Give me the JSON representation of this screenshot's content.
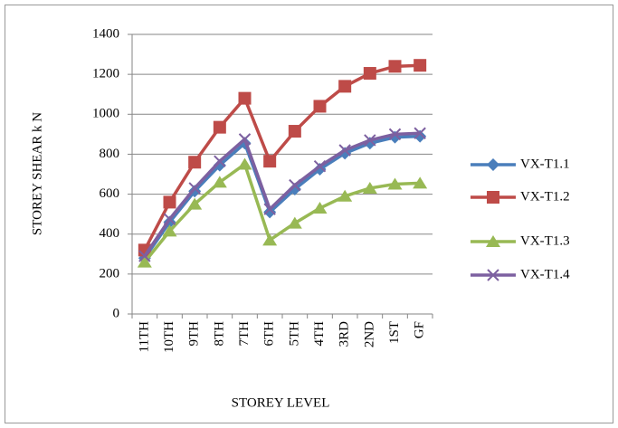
{
  "chart_data": {
    "type": "line",
    "xlabel": "STOREY LEVEL",
    "ylabel": "STOREY SHEAR k N",
    "categories": [
      "11TH",
      "10TH",
      "9TH",
      "8TH",
      "7TH",
      "6TH",
      "5TH",
      "4TH",
      "3RD",
      "2ND",
      "1ST",
      "GF"
    ],
    "series": [
      {
        "name": "VX-T1.1",
        "color": "#4a7ebb",
        "marker": "diamond",
        "values": [
          280,
          460,
          615,
          745,
          855,
          510,
          625,
          725,
          805,
          855,
          885,
          890
        ]
      },
      {
        "name": "VX-T1.2",
        "color": "#be4b48",
        "marker": "square",
        "values": [
          320,
          560,
          760,
          935,
          1080,
          765,
          915,
          1040,
          1140,
          1205,
          1240,
          1245
        ]
      },
      {
        "name": "VX-T1.3",
        "color": "#98b954",
        "marker": "triangle",
        "values": [
          260,
          415,
          550,
          660,
          750,
          370,
          455,
          530,
          590,
          630,
          650,
          655
        ]
      },
      {
        "name": "VX-T1.4",
        "color": "#7d60a0",
        "marker": "x",
        "values": [
          290,
          475,
          630,
          765,
          875,
          525,
          645,
          740,
          820,
          870,
          900,
          905
        ]
      }
    ],
    "ylim": [
      0,
      1400
    ],
    "yticks": [
      0,
      200,
      400,
      600,
      800,
      1000,
      1200,
      1400
    ],
    "grid": true,
    "legend": "right"
  }
}
